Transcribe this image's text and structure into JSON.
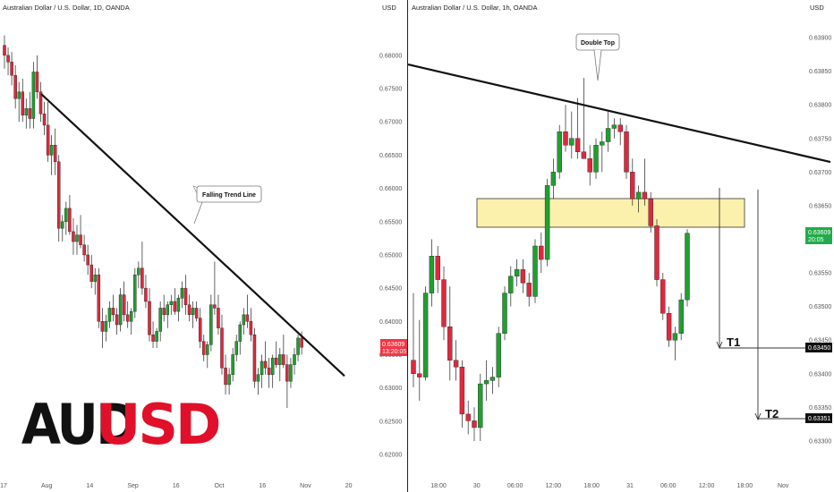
{
  "colors": {
    "up": "#1fa02f",
    "down": "#e0283d",
    "zone_fill": "#fbef9e",
    "zone_stroke": "#333333",
    "price_badge_left": "#f23645",
    "price_badge_right": "#22ab4a",
    "level_badge": "#111111",
    "brand_red": "#e0102a",
    "brand_black": "#111111"
  },
  "brand": {
    "part1": "AUD",
    "part2": "USD"
  },
  "left_chart": {
    "header": "Australian Dollar / U.S. Dollar, 1D, OANDA",
    "currency": "USD",
    "price_badge": {
      "price": "0.63609",
      "sub": "13:20:05",
      "value": 0.63609
    },
    "annotation": "Falling Trend Line",
    "y_ticks": [
      "0.68000",
      "0.67500",
      "0.67000",
      "0.66500",
      "0.66000",
      "0.65500",
      "0.65000",
      "0.64500",
      "0.64000",
      "0.63500",
      "0.63000",
      "0.62500",
      "0.62000"
    ],
    "x_ticks": [
      "17",
      "Aug",
      "14",
      "Sep",
      "16",
      "Oct",
      "16",
      "Nov",
      "20"
    ]
  },
  "right_chart": {
    "header": "Australian Dollar / U.S. Dollar, 1h, OANDA",
    "currency": "USD",
    "price_badge": {
      "price": "0.63609",
      "sub": "20:05",
      "value": 0.63609
    },
    "annotation": "Double Top",
    "y_ticks": [
      "0.63900",
      "0.63850",
      "0.63800",
      "0.63750",
      "0.63700",
      "0.63650",
      "0.63600",
      "0.63550",
      "0.63500",
      "0.63450",
      "0.63400",
      "0.63350",
      "0.63300"
    ],
    "x_ticks": [
      "18:00",
      "30",
      "06:00",
      "12:00",
      "18:00",
      "31",
      "06:00",
      "12:00",
      "18:00",
      "Nov"
    ],
    "targets": [
      {
        "label": "T1",
        "price": "0.63450",
        "value": 0.6345
      },
      {
        "label": "T2",
        "price": "0.63351",
        "value": 0.63351
      }
    ]
  },
  "chart_data": [
    {
      "type": "candlestick",
      "title": "Australian Dollar / U.S. Dollar, 1D, OANDA",
      "ylabel": "USD",
      "ylim": [
        0.62,
        0.682
      ],
      "trend_line": {
        "label": "Falling Trend Line",
        "from": [
          0.6742
        ],
        "to": [
          0.6318
        ]
      },
      "ohlc": [
        [
          0.6815,
          0.683,
          0.678,
          0.68
        ],
        [
          0.68,
          0.6812,
          0.677,
          0.679
        ],
        [
          0.679,
          0.6805,
          0.6755,
          0.677
        ],
        [
          0.677,
          0.6785,
          0.672,
          0.6735
        ],
        [
          0.6735,
          0.676,
          0.67,
          0.6745
        ],
        [
          0.6745,
          0.6765,
          0.67,
          0.671
        ],
        [
          0.671,
          0.6735,
          0.669,
          0.672
        ],
        [
          0.672,
          0.6745,
          0.669,
          0.6705
        ],
        [
          0.6705,
          0.679,
          0.669,
          0.6775
        ],
        [
          0.6775,
          0.68,
          0.6735,
          0.6745
        ],
        [
          0.6745,
          0.676,
          0.67,
          0.6712
        ],
        [
          0.6712,
          0.673,
          0.668,
          0.6695
        ],
        [
          0.6695,
          0.673,
          0.664,
          0.665
        ],
        [
          0.665,
          0.668,
          0.662,
          0.6665
        ],
        [
          0.6665,
          0.669,
          0.662,
          0.664
        ],
        [
          0.664,
          0.665,
          0.652,
          0.654
        ],
        [
          0.654,
          0.656,
          0.652,
          0.655
        ],
        [
          0.655,
          0.658,
          0.653,
          0.657
        ],
        [
          0.657,
          0.659,
          0.653,
          0.6535
        ],
        [
          0.6535,
          0.6555,
          0.65,
          0.652
        ],
        [
          0.652,
          0.6545,
          0.65,
          0.653
        ],
        [
          0.653,
          0.656,
          0.651,
          0.6515
        ],
        [
          0.6515,
          0.653,
          0.649,
          0.65
        ],
        [
          0.65,
          0.6515,
          0.647,
          0.6485
        ],
        [
          0.6485,
          0.65,
          0.645,
          0.646
        ],
        [
          0.646,
          0.648,
          0.644,
          0.647
        ],
        [
          0.647,
          0.648,
          0.639,
          0.64
        ],
        [
          0.64,
          0.642,
          0.636,
          0.6385
        ],
        [
          0.6385,
          0.641,
          0.637,
          0.64
        ],
        [
          0.64,
          0.643,
          0.639,
          0.642
        ],
        [
          0.642,
          0.644,
          0.64,
          0.641
        ],
        [
          0.641,
          0.642,
          0.638,
          0.6395
        ],
        [
          0.6395,
          0.645,
          0.6385,
          0.644
        ],
        [
          0.644,
          0.646,
          0.64,
          0.641
        ],
        [
          0.641,
          0.643,
          0.639,
          0.64
        ],
        [
          0.64,
          0.642,
          0.638,
          0.6415
        ],
        [
          0.6415,
          0.648,
          0.6405,
          0.647
        ],
        [
          0.647,
          0.649,
          0.645,
          0.648
        ],
        [
          0.648,
          0.652,
          0.644,
          0.645
        ],
        [
          0.645,
          0.647,
          0.642,
          0.643
        ],
        [
          0.643,
          0.645,
          0.637,
          0.638
        ],
        [
          0.638,
          0.64,
          0.636,
          0.637
        ],
        [
          0.637,
          0.639,
          0.636,
          0.6385
        ],
        [
          0.6385,
          0.643,
          0.637,
          0.642
        ],
        [
          0.642,
          0.644,
          0.64,
          0.641
        ],
        [
          0.641,
          0.643,
          0.639,
          0.6425
        ],
        [
          0.6425,
          0.644,
          0.641,
          0.643
        ],
        [
          0.643,
          0.645,
          0.641,
          0.6415
        ],
        [
          0.6415,
          0.644,
          0.64,
          0.6435
        ],
        [
          0.6435,
          0.646,
          0.642,
          0.645
        ],
        [
          0.645,
          0.647,
          0.641,
          0.6425
        ],
        [
          0.6425,
          0.644,
          0.64,
          0.641
        ],
        [
          0.641,
          0.643,
          0.639,
          0.642
        ],
        [
          0.642,
          0.643,
          0.64,
          0.6405
        ],
        [
          0.6405,
          0.642,
          0.636,
          0.637
        ],
        [
          0.637,
          0.638,
          0.634,
          0.635
        ],
        [
          0.635,
          0.637,
          0.633,
          0.6365
        ],
        [
          0.6365,
          0.644,
          0.6355,
          0.6425
        ],
        [
          0.6425,
          0.649,
          0.641,
          0.642
        ],
        [
          0.642,
          0.644,
          0.638,
          0.639
        ],
        [
          0.639,
          0.641,
          0.632,
          0.633
        ],
        [
          0.633,
          0.635,
          0.629,
          0.6305
        ],
        [
          0.6305,
          0.633,
          0.629,
          0.632
        ],
        [
          0.632,
          0.636,
          0.631,
          0.635
        ],
        [
          0.635,
          0.638,
          0.634,
          0.637
        ],
        [
          0.637,
          0.64,
          0.635,
          0.6395
        ],
        [
          0.6395,
          0.642,
          0.638,
          0.641
        ],
        [
          0.641,
          0.644,
          0.639,
          0.64
        ],
        [
          0.64,
          0.642,
          0.637,
          0.638
        ],
        [
          0.638,
          0.639,
          0.63,
          0.631
        ],
        [
          0.631,
          0.633,
          0.629,
          0.632
        ],
        [
          0.632,
          0.635,
          0.63,
          0.634
        ],
        [
          0.634,
          0.637,
          0.632,
          0.633
        ],
        [
          0.633,
          0.6345,
          0.63,
          0.632
        ],
        [
          0.632,
          0.635,
          0.63,
          0.6345
        ],
        [
          0.6345,
          0.637,
          0.633,
          0.6335
        ],
        [
          0.6335,
          0.636,
          0.631,
          0.635
        ],
        [
          0.635,
          0.638,
          0.633,
          0.6335
        ],
        [
          0.6335,
          0.635,
          0.627,
          0.631
        ],
        [
          0.631,
          0.6345,
          0.63,
          0.6335
        ],
        [
          0.6335,
          0.636,
          0.632,
          0.635
        ],
        [
          0.635,
          0.638,
          0.634,
          0.6375
        ],
        [
          0.6375,
          0.6385,
          0.635,
          0.6361
        ]
      ]
    },
    {
      "type": "candlestick",
      "title": "Australian Dollar / U.S. Dollar, 1h, OANDA",
      "ylabel": "USD",
      "ylim": [
        0.6328,
        0.6392
      ],
      "trend_line": {
        "from": [
          0.6386
        ],
        "to": [
          0.63715
        ]
      },
      "zone": {
        "label": "resistance zone",
        "from": 0.63625,
        "to": 0.63665
      },
      "annotation": "Double Top",
      "targets": [
        {
          "label": "T1",
          "value": 0.6345
        },
        {
          "label": "T2",
          "value": 0.63351
        }
      ],
      "ohlc": [
        [
          0.6342,
          0.6352,
          0.6338,
          0.634
        ],
        [
          0.634,
          0.6348,
          0.6336,
          0.63395
        ],
        [
          0.63395,
          0.6353,
          0.6339,
          0.6352
        ],
        [
          0.6352,
          0.636,
          0.635,
          0.63575
        ],
        [
          0.63575,
          0.6359,
          0.6352,
          0.6354
        ],
        [
          0.6354,
          0.6356,
          0.6345,
          0.6347
        ],
        [
          0.6347,
          0.6353,
          0.6339,
          0.6342
        ],
        [
          0.6342,
          0.6345,
          0.6339,
          0.6341
        ],
        [
          0.6341,
          0.6342,
          0.6332,
          0.6334
        ],
        [
          0.6334,
          0.6336,
          0.6331,
          0.6333
        ],
        [
          0.6333,
          0.6335,
          0.633,
          0.6332
        ],
        [
          0.6332,
          0.634,
          0.633,
          0.63385
        ],
        [
          0.63385,
          0.6342,
          0.6336,
          0.6339
        ],
        [
          0.6339,
          0.6341,
          0.6337,
          0.63395
        ],
        [
          0.63395,
          0.6347,
          0.6338,
          0.6346
        ],
        [
          0.6346,
          0.6353,
          0.6345,
          0.6352
        ],
        [
          0.6352,
          0.6356,
          0.635,
          0.63545
        ],
        [
          0.63545,
          0.6357,
          0.6353,
          0.63555
        ],
        [
          0.63555,
          0.6357,
          0.6352,
          0.63535
        ],
        [
          0.63535,
          0.6355,
          0.635,
          0.63515
        ],
        [
          0.63515,
          0.636,
          0.63505,
          0.6359
        ],
        [
          0.6359,
          0.6361,
          0.6355,
          0.6357
        ],
        [
          0.6357,
          0.6369,
          0.6356,
          0.6368
        ],
        [
          0.6368,
          0.6372,
          0.6366,
          0.637
        ],
        [
          0.637,
          0.6377,
          0.6369,
          0.6376
        ],
        [
          0.6376,
          0.638,
          0.6373,
          0.6374
        ],
        [
          0.6374,
          0.6379,
          0.6372,
          0.6375
        ],
        [
          0.6375,
          0.6381,
          0.6372,
          0.6373
        ],
        [
          0.6373,
          0.6384,
          0.6372,
          0.6372
        ],
        [
          0.6372,
          0.6374,
          0.6368,
          0.637
        ],
        [
          0.637,
          0.6375,
          0.6369,
          0.6374
        ],
        [
          0.6374,
          0.6376,
          0.637,
          0.63745
        ],
        [
          0.63745,
          0.6379,
          0.6373,
          0.63765
        ],
        [
          0.63765,
          0.6378,
          0.6375,
          0.6377
        ],
        [
          0.6377,
          0.6378,
          0.6374,
          0.6376
        ],
        [
          0.6376,
          0.6377,
          0.6369,
          0.637
        ],
        [
          0.637,
          0.6372,
          0.6365,
          0.6366
        ],
        [
          0.6366,
          0.6368,
          0.6364,
          0.6367
        ],
        [
          0.6367,
          0.6372,
          0.6365,
          0.6366
        ],
        [
          0.6366,
          0.6367,
          0.6361,
          0.6362
        ],
        [
          0.6362,
          0.6363,
          0.6353,
          0.6354
        ],
        [
          0.6354,
          0.6355,
          0.6348,
          0.6349
        ],
        [
          0.6349,
          0.635,
          0.6344,
          0.6345
        ],
        [
          0.6345,
          0.6347,
          0.6342,
          0.6346
        ],
        [
          0.6346,
          0.6352,
          0.6345,
          0.6351
        ],
        [
          0.6351,
          0.63615,
          0.635,
          0.63609
        ]
      ]
    }
  ]
}
